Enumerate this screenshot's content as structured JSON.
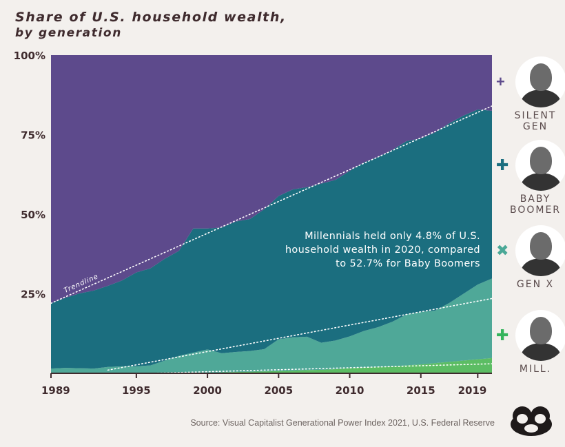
{
  "title": "Share of U.S. household wealth,",
  "subtitle": "by generation",
  "annotation_lines": [
    "Millennials held only 4.8% of U.S.",
    "household wealth in 2020, compared",
    "to 52.7% for Baby Boomers"
  ],
  "trendline_label": "Trendline",
  "source": "Source: Visual Capitalist Generational Power Index 2021, U.S. Federal Reserve",
  "generations": [
    {
      "label_lines": [
        "SILENT",
        "GEN"
      ],
      "marker": "+",
      "color": "#5d4a8c",
      "icon": "silent-gen-portrait"
    },
    {
      "label_lines": [
        "BABY",
        "BOOMER"
      ],
      "marker": "✚",
      "color": "#1b6e7f",
      "icon": "baby-boomer-portrait"
    },
    {
      "label_lines": [
        "GEN X"
      ],
      "marker": "✖",
      "color": "#4aa897",
      "icon": "gen-x-portrait"
    },
    {
      "label_lines": [
        "MILL."
      ],
      "marker": "✚",
      "color": "#35b45c",
      "icon": "millennial-portrait"
    }
  ],
  "colors": {
    "silent": "#5d4a8c",
    "boomer": "#1b6e7f",
    "genx": "#4fa898",
    "mill": "#5cbd64",
    "background": "#f3f0ed"
  },
  "chart_data": {
    "type": "area",
    "stacked": true,
    "title": "Share of U.S. household wealth, by generation",
    "ylim": [
      0,
      100
    ],
    "xlim": [
      1989,
      2020
    ],
    "yticks": [
      25,
      50,
      75,
      100
    ],
    "ytick_labels": [
      "25%",
      "50%",
      "75%",
      "100%"
    ],
    "xticks": [
      1989,
      1995,
      2000,
      2005,
      2010,
      2015,
      2019
    ],
    "xtick_labels": [
      "1989",
      "1995",
      "2000",
      "2005",
      "2010",
      "2015",
      "2019"
    ],
    "x": [
      1989,
      1990,
      1991,
      1992,
      1993,
      1994,
      1995,
      1996,
      1997,
      1998,
      1999,
      2000,
      2001,
      2002,
      2003,
      2004,
      2005,
      2006,
      2007,
      2008,
      2009,
      2010,
      2011,
      2012,
      2013,
      2014,
      2015,
      2016,
      2017,
      2018,
      2019,
      2020
    ],
    "series": [
      {
        "name": "Millennials",
        "values": [
          0,
          0,
          0,
          0,
          0,
          0,
          0,
          0,
          0,
          0,
          0,
          0,
          0.3,
          0.4,
          0.5,
          0.6,
          0.7,
          0.8,
          1.0,
          1.1,
          1.3,
          1.6,
          1.8,
          2.0,
          2.2,
          2.5,
          2.8,
          3.2,
          3.6,
          4.0,
          4.4,
          4.8
        ]
      },
      {
        "name": "Gen X",
        "values": [
          1.5,
          1.7,
          1.6,
          1.5,
          2.0,
          2.2,
          2.2,
          2.5,
          4.0,
          5.5,
          6.5,
          7.5,
          6.0,
          6.3,
          6.5,
          7.0,
          10.0,
          10.5,
          10.5,
          8.5,
          9.0,
          10.0,
          11.5,
          12.5,
          14.0,
          16.0,
          16.5,
          16.5,
          18.5,
          21.0,
          23.5,
          25.0
        ]
      },
      {
        "name": "Baby Boomers",
        "values": [
          20.5,
          22.0,
          23.5,
          24.5,
          25.5,
          27.0,
          29.5,
          30.5,
          32.0,
          33.0,
          39.0,
          38.0,
          39.5,
          41.0,
          41.5,
          44.0,
          45.0,
          46.5,
          47.0,
          50.0,
          50.5,
          52.0,
          53.0,
          53.5,
          54.0,
          54.5,
          54.5,
          56.0,
          56.5,
          56.0,
          55.0,
          52.7
        ]
      },
      {
        "name": "Silent Generation",
        "values": [
          78.0,
          76.3,
          74.9,
          74.0,
          72.5,
          70.8,
          68.3,
          67.0,
          64.0,
          61.5,
          54.5,
          54.5,
          54.2,
          52.3,
          51.5,
          48.4,
          44.3,
          42.2,
          41.5,
          40.4,
          39.2,
          36.4,
          33.7,
          32.0,
          29.8,
          27.0,
          26.2,
          24.3,
          21.4,
          19.0,
          17.1,
          17.5
        ]
      }
    ],
    "trendlines": [
      {
        "series": "Baby Boomers (cumulative)",
        "from": [
          1989,
          22
        ],
        "to": [
          2020,
          84
        ]
      },
      {
        "series": "Gen X (cumulative)",
        "from": [
          1993,
          1
        ],
        "to": [
          2020,
          23.5
        ]
      },
      {
        "series": "Millennials (cumulative)",
        "from": [
          1996,
          0
        ],
        "to": [
          2020,
          3
        ]
      }
    ]
  }
}
